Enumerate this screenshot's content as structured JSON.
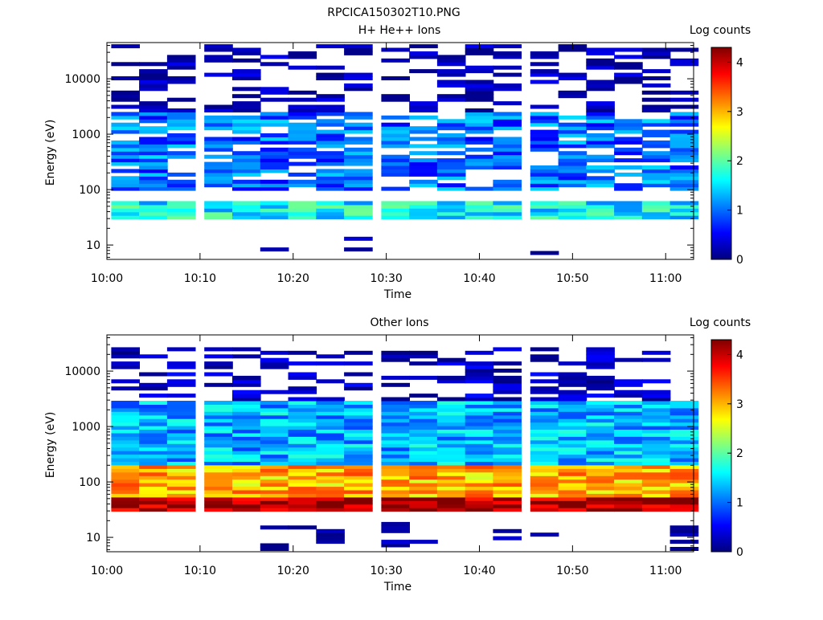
{
  "title": "RPCICA150302T10.PNG",
  "chart_data": [
    {
      "type": "heatmap",
      "title": "H+ He++ Ions",
      "xlabel": "Time",
      "ylabel": "Energy (eV)",
      "y_scale": "log",
      "ylim": [
        5.5,
        45000
      ],
      "xlim": [
        "10:00",
        "11:03"
      ],
      "x_ticks": [
        "10:00",
        "10:10",
        "10:20",
        "10:30",
        "10:40",
        "10:50",
        "11:00"
      ],
      "y_ticks": [
        "10",
        "100",
        "1000",
        "10000"
      ],
      "colorbar": {
        "label": "Log counts",
        "range": [
          0,
          4.3
        ],
        "ticks": [
          "0",
          "1",
          "2",
          "3",
          "4"
        ]
      },
      "colormap": [
        "#00007f",
        "#0000ff",
        "#007fff",
        "#00ffff",
        "#7fff7f",
        "#ffff00",
        "#ff7f00",
        "#ff0000",
        "#7f0000"
      ],
      "time_bins": [
        "10:02",
        "10:05",
        "10:08",
        "10:12",
        "10:15",
        "10:18",
        "10:21",
        "10:24",
        "10:27",
        "10:31",
        "10:34",
        "10:37",
        "10:40",
        "10:43",
        "10:47",
        "10:50",
        "10:53",
        "10:56",
        "10:59",
        "11:02"
      ],
      "features": [
        {
          "description": "dense band",
          "time": [
            "10:01",
            "11:03"
          ],
          "energy_eV": [
            30,
            60
          ],
          "log_counts": 1.6
        },
        {
          "description": "broad population",
          "time": [
            "10:01",
            "11:03"
          ],
          "energy_eV": [
            100,
            2500
          ],
          "log_counts": 1.0
        },
        {
          "description": "sparse high-energy counts",
          "time": [
            "10:01",
            "11:03"
          ],
          "energy_eV": [
            2500,
            40000
          ],
          "log_counts": 0.2
        },
        {
          "description": "low-energy patches",
          "times": [
            "10:19",
            "10:27",
            "10:29",
            "10:48"
          ],
          "energy_eV": [
            6,
            20
          ],
          "log_counts": 0.1
        }
      ]
    },
    {
      "type": "heatmap",
      "title": "Other Ions",
      "xlabel": "Time",
      "ylabel": "Energy (eV)",
      "y_scale": "log",
      "ylim": [
        5.5,
        45000
      ],
      "xlim": [
        "10:00",
        "11:03"
      ],
      "x_ticks": [
        "10:00",
        "10:10",
        "10:20",
        "10:30",
        "10:40",
        "10:50",
        "11:00"
      ],
      "y_ticks": [
        "10",
        "100",
        "1000",
        "10000"
      ],
      "colorbar": {
        "label": "Log counts",
        "range": [
          0,
          4.3
        ],
        "ticks": [
          "0",
          "1",
          "2",
          "3",
          "4"
        ]
      },
      "colormap": [
        "#00007f",
        "#0000ff",
        "#007fff",
        "#00ffff",
        "#7fff7f",
        "#ffff00",
        "#ff7f00",
        "#ff0000",
        "#7f0000"
      ],
      "time_bins": [
        "10:02",
        "10:05",
        "10:08",
        "10:12",
        "10:15",
        "10:18",
        "10:21",
        "10:24",
        "10:27",
        "10:31",
        "10:34",
        "10:37",
        "10:40",
        "10:43",
        "10:47",
        "10:50",
        "10:53",
        "10:56",
        "10:59",
        "11:02"
      ],
      "features": [
        {
          "description": "peak band",
          "time": [
            "10:01",
            "11:03"
          ],
          "energy_eV": [
            28,
            55
          ],
          "log_counts": 4.1
        },
        {
          "description": "strong population",
          "time": [
            "10:01",
            "11:03"
          ],
          "energy_eV": [
            55,
            200
          ],
          "log_counts": 3.0
        },
        {
          "description": "moderate population",
          "time": [
            "10:01",
            "11:03"
          ],
          "energy_eV": [
            200,
            3000
          ],
          "log_counts": 1.3
        },
        {
          "description": "sparse high-energy counts",
          "time": [
            "10:01",
            "10:59"
          ],
          "energy_eV": [
            3000,
            28000
          ],
          "log_counts": 0.3
        },
        {
          "description": "low-energy patches",
          "times": [
            "10:18",
            "10:21",
            "10:24",
            "10:31",
            "10:34",
            "10:43",
            "10:48",
            "11:01"
          ],
          "energy_eV": [
            6,
            20
          ],
          "log_counts": 0.1
        }
      ]
    }
  ]
}
